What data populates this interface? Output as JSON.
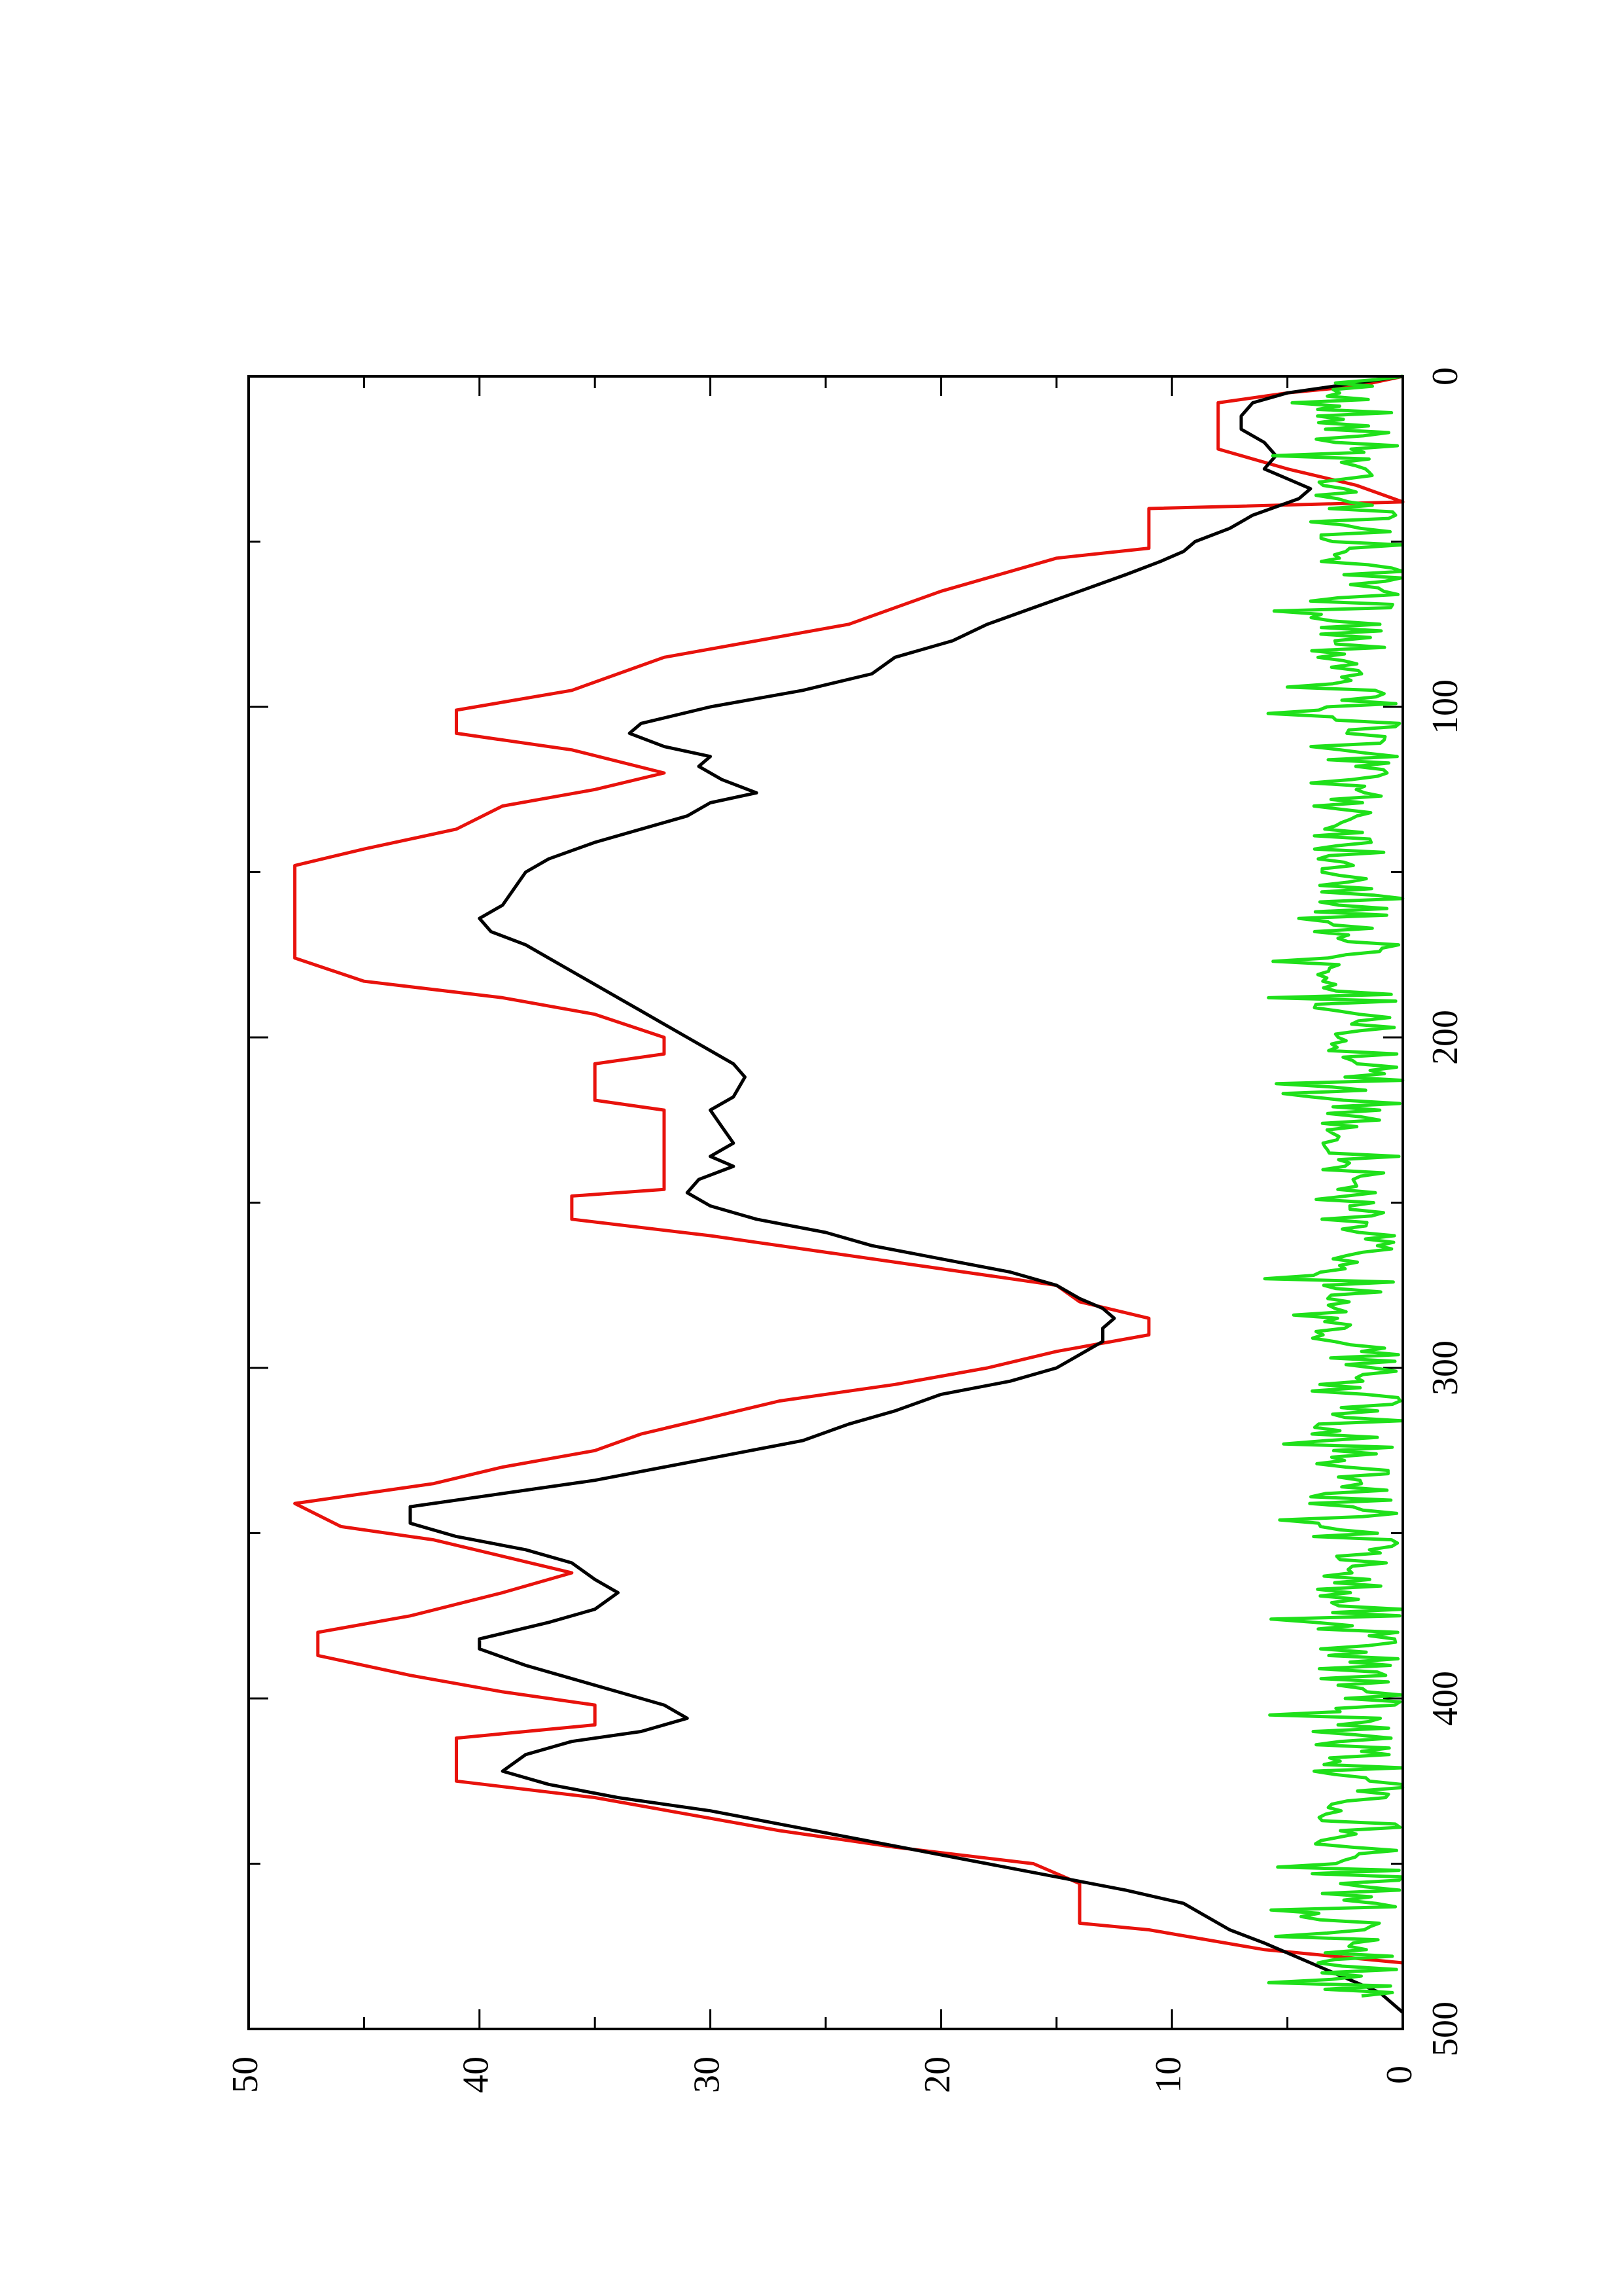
{
  "chart_data": {
    "type": "line",
    "orientation": "rotated-90-ccw",
    "xlim": [
      0,
      500
    ],
    "ylim": [
      0,
      50
    ],
    "x_ticks": [
      0,
      100,
      200,
      300,
      400,
      500
    ],
    "y_ticks": [
      0,
      10,
      20,
      30,
      40,
      50
    ],
    "x_tick_labels": [
      "0",
      "100",
      "200",
      "300",
      "400",
      "500"
    ],
    "y_tick_labels": [
      "0",
      "10",
      "20",
      "30",
      "40",
      "50"
    ],
    "x_minor_ticks": [
      50,
      150,
      250,
      350,
      450
    ],
    "y_minor_ticks": [
      5,
      15,
      25,
      35,
      45
    ],
    "grid": false,
    "title": "",
    "xlabel": "",
    "ylabel": "",
    "series": [
      {
        "color": "#e8120c",
        "style": "step",
        "points": [
          [
            0,
            0
          ],
          [
            3,
            2
          ],
          [
            5,
            5
          ],
          [
            8,
            8
          ],
          [
            22,
            8
          ],
          [
            28,
            5
          ],
          [
            33,
            2
          ],
          [
            38,
            0
          ],
          [
            40,
            11
          ],
          [
            52,
            11
          ],
          [
            55,
            15
          ],
          [
            65,
            20
          ],
          [
            75,
            24
          ],
          [
            85,
            32
          ],
          [
            95,
            36
          ],
          [
            101,
            41
          ],
          [
            108,
            41
          ],
          [
            113,
            36
          ],
          [
            120,
            32
          ],
          [
            125,
            35
          ],
          [
            130,
            39
          ],
          [
            137,
            41
          ],
          [
            143,
            45
          ],
          [
            148,
            48
          ],
          [
            176,
            48
          ],
          [
            183,
            45
          ],
          [
            188,
            39
          ],
          [
            193,
            35
          ],
          [
            200,
            32
          ],
          [
            205,
            32
          ],
          [
            208,
            35
          ],
          [
            219,
            35
          ],
          [
            222,
            32
          ],
          [
            246,
            32
          ],
          [
            248,
            36
          ],
          [
            255,
            36
          ],
          [
            260,
            30
          ],
          [
            268,
            22
          ],
          [
            275,
            15
          ],
          [
            280,
            14
          ],
          [
            285,
            11
          ],
          [
            290,
            11
          ],
          [
            295,
            15
          ],
          [
            300,
            18
          ],
          [
            305,
            22
          ],
          [
            310,
            27
          ],
          [
            315,
            30
          ],
          [
            320,
            33
          ],
          [
            325,
            35
          ],
          [
            330,
            39
          ],
          [
            335,
            42
          ],
          [
            341,
            48
          ],
          [
            348,
            46
          ],
          [
            352,
            42
          ],
          [
            357,
            39
          ],
          [
            362,
            36
          ],
          [
            368,
            39
          ],
          [
            375,
            43
          ],
          [
            380,
            47
          ],
          [
            387,
            47
          ],
          [
            393,
            43
          ],
          [
            398,
            39
          ],
          [
            402,
            35
          ],
          [
            408,
            35
          ],
          [
            412,
            41
          ],
          [
            425,
            41
          ],
          [
            430,
            35
          ],
          [
            435,
            31
          ],
          [
            440,
            27
          ],
          [
            445,
            22
          ],
          [
            450,
            16
          ],
          [
            456,
            14
          ],
          [
            468,
            14
          ],
          [
            470,
            11
          ],
          [
            476,
            6
          ],
          [
            478,
            3
          ],
          [
            480,
            0
          ]
        ]
      },
      {
        "color": "#000000",
        "style": "line",
        "points": [
          [
            0,
            0
          ],
          [
            2,
            2
          ],
          [
            5,
            5
          ],
          [
            8,
            6.5
          ],
          [
            12,
            7
          ],
          [
            16,
            7
          ],
          [
            20,
            6
          ],
          [
            24,
            5.5
          ],
          [
            28,
            6
          ],
          [
            31,
            5
          ],
          [
            34,
            4
          ],
          [
            37,
            4.5
          ],
          [
            42,
            6.5
          ],
          [
            46,
            7.5
          ],
          [
            50,
            9
          ],
          [
            53,
            9.5
          ],
          [
            56,
            10.5
          ],
          [
            60,
            12
          ],
          [
            65,
            14
          ],
          [
            70,
            16
          ],
          [
            75,
            18
          ],
          [
            80,
            19.5
          ],
          [
            85,
            22
          ],
          [
            90,
            23
          ],
          [
            95,
            26
          ],
          [
            100,
            30
          ],
          [
            105,
            33
          ],
          [
            108,
            33.5
          ],
          [
            112,
            32
          ],
          [
            115,
            30
          ],
          [
            118,
            30.5
          ],
          [
            122,
            29.5
          ],
          [
            126,
            28
          ],
          [
            129,
            30
          ],
          [
            133,
            31
          ],
          [
            137,
            33
          ],
          [
            141,
            35
          ],
          [
            146,
            37
          ],
          [
            150,
            38
          ],
          [
            155,
            38.5
          ],
          [
            160,
            39
          ],
          [
            164,
            40
          ],
          [
            168,
            39.5
          ],
          [
            172,
            38
          ],
          [
            176,
            37
          ],
          [
            180,
            36
          ],
          [
            184,
            35
          ],
          [
            188,
            34
          ],
          [
            192,
            33
          ],
          [
            196,
            32
          ],
          [
            200,
            31
          ],
          [
            204,
            30
          ],
          [
            208,
            29
          ],
          [
            212,
            28.5
          ],
          [
            218,
            29
          ],
          [
            222,
            30
          ],
          [
            227,
            29.5
          ],
          [
            232,
            29
          ],
          [
            236,
            30
          ],
          [
            239,
            29
          ],
          [
            243,
            30.5
          ],
          [
            247,
            31
          ],
          [
            251,
            30
          ],
          [
            255,
            28
          ],
          [
            259,
            25
          ],
          [
            263,
            23
          ],
          [
            267,
            20
          ],
          [
            271,
            17
          ],
          [
            275,
            15
          ],
          [
            279,
            14
          ],
          [
            282,
            13
          ],
          [
            285,
            12.5
          ],
          [
            288,
            13
          ],
          [
            292,
            13
          ],
          [
            296,
            14
          ],
          [
            300,
            15
          ],
          [
            304,
            17
          ],
          [
            308,
            20
          ],
          [
            313,
            22
          ],
          [
            317,
            24
          ],
          [
            322,
            26
          ],
          [
            326,
            29
          ],
          [
            330,
            32
          ],
          [
            334,
            35
          ],
          [
            338,
            39
          ],
          [
            342,
            43
          ],
          [
            347,
            43
          ],
          [
            351,
            41
          ],
          [
            355,
            38
          ],
          [
            359,
            36
          ],
          [
            364,
            35
          ],
          [
            368,
            34
          ],
          [
            373,
            35
          ],
          [
            377,
            37
          ],
          [
            382,
            40
          ],
          [
            385,
            40
          ],
          [
            390,
            38
          ],
          [
            394,
            36
          ],
          [
            398,
            34
          ],
          [
            402,
            32
          ],
          [
            406,
            31
          ],
          [
            410,
            33
          ],
          [
            413,
            36
          ],
          [
            417,
            38
          ],
          [
            422,
            39
          ],
          [
            426,
            37
          ],
          [
            430,
            34
          ],
          [
            434,
            30
          ],
          [
            438,
            27
          ],
          [
            442,
            24
          ],
          [
            446,
            21
          ],
          [
            450,
            18
          ],
          [
            454,
            15
          ],
          [
            458,
            12
          ],
          [
            462,
            9.5
          ],
          [
            466,
            8.5
          ],
          [
            470,
            7.5
          ],
          [
            474,
            6
          ],
          [
            477,
            5
          ],
          [
            480,
            4
          ],
          [
            483,
            3
          ],
          [
            486,
            2
          ],
          [
            489,
            1
          ],
          [
            492,
            0.5
          ],
          [
            495,
            0
          ]
        ]
      },
      {
        "color": "#1fe01a",
        "style": "line",
        "generated": "noise",
        "mean": 2,
        "amplitude": 2,
        "x_range": [
          0,
          490
        ],
        "step": 1
      }
    ]
  }
}
